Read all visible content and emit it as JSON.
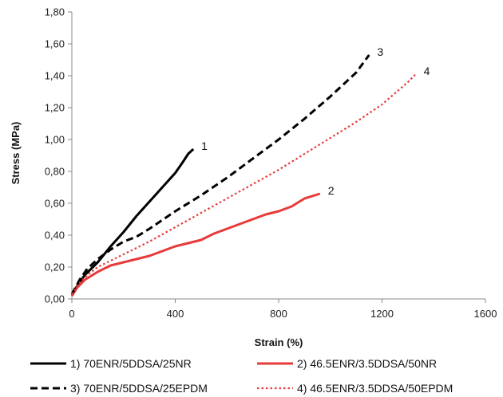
{
  "chart_data": {
    "type": "line",
    "xlabel": "Strain (%)",
    "ylabel": "Stress (MPa)",
    "xlim": [
      0,
      1600
    ],
    "ylim": [
      0,
      1.8
    ],
    "xticks": [
      0,
      400,
      800,
      1200,
      1600
    ],
    "xtick_labels": [
      "0",
      "400",
      "800",
      "1200",
      "1600"
    ],
    "yticks": [
      0,
      0.2,
      0.4,
      0.6,
      0.8,
      1.0,
      1.2,
      1.4,
      1.6,
      1.8
    ],
    "ytick_labels": [
      "0,00",
      "0,20",
      "0,40",
      "0,60",
      "0,80",
      "1,00",
      "1,20",
      "1,40",
      "1,60",
      "1,80"
    ],
    "grid": false,
    "legend_position": "bottom",
    "series": [
      {
        "name": "1) 70ENR/5DDSA/25NR",
        "curve_label": "1",
        "color": "#000000",
        "style": "solid",
        "x": [
          0,
          20,
          50,
          100,
          150,
          200,
          250,
          300,
          350,
          400,
          430,
          450,
          470
        ],
        "y": [
          0.02,
          0.08,
          0.15,
          0.23,
          0.33,
          0.42,
          0.52,
          0.61,
          0.7,
          0.79,
          0.86,
          0.91,
          0.94
        ]
      },
      {
        "name": "2) 46.5ENR/3.5DDSA/50NR",
        "curve_label": "2",
        "color": "#e83a3a",
        "style": "solid",
        "x": [
          0,
          20,
          50,
          100,
          150,
          200,
          250,
          300,
          350,
          400,
          450,
          500,
          550,
          600,
          650,
          700,
          750,
          800,
          850,
          900,
          960
        ],
        "y": [
          0.02,
          0.07,
          0.12,
          0.17,
          0.21,
          0.23,
          0.25,
          0.27,
          0.3,
          0.33,
          0.35,
          0.37,
          0.41,
          0.44,
          0.47,
          0.5,
          0.53,
          0.55,
          0.58,
          0.63,
          0.66
        ]
      },
      {
        "name": "3) 70ENR/5DDSA/25EPDM",
        "curve_label": "3",
        "color": "#000000",
        "style": "dashed",
        "x": [
          0,
          30,
          60,
          100,
          150,
          200,
          250,
          300,
          400,
          500,
          600,
          700,
          800,
          900,
          1000,
          1100,
          1150
        ],
        "y": [
          0.03,
          0.12,
          0.19,
          0.25,
          0.31,
          0.36,
          0.39,
          0.44,
          0.55,
          0.65,
          0.76,
          0.88,
          1.0,
          1.13,
          1.27,
          1.42,
          1.53
        ]
      },
      {
        "name": "4) 46.5ENR/3.5DDSA/50EPDM",
        "curve_label": "4",
        "color": "#e83a3a",
        "style": "dotted",
        "x": [
          0,
          30,
          60,
          100,
          150,
          200,
          300,
          400,
          500,
          600,
          700,
          800,
          900,
          1000,
          1100,
          1200,
          1300,
          1330
        ],
        "y": [
          0.03,
          0.1,
          0.15,
          0.2,
          0.24,
          0.28,
          0.36,
          0.45,
          0.54,
          0.63,
          0.72,
          0.81,
          0.91,
          1.01,
          1.11,
          1.22,
          1.36,
          1.41
        ]
      }
    ]
  }
}
